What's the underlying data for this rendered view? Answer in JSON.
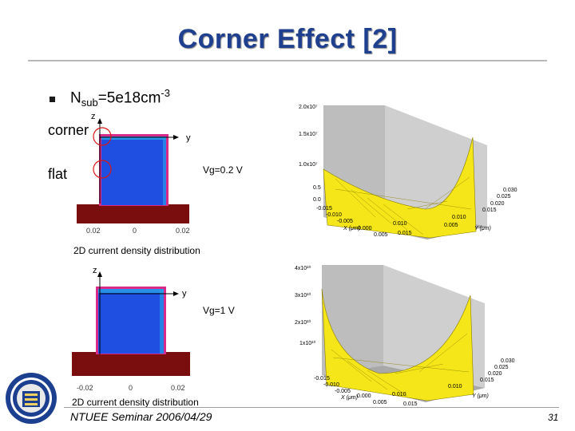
{
  "slide": {
    "title": "Corner Effect [2]",
    "bullet": {
      "main": "N",
      "sub": "sub",
      "eq": "=5e18cm",
      "sup": "-3"
    },
    "footer": "NTUEE Seminar 2006/04/29",
    "page_number": "31"
  },
  "sim1": {
    "z": "z",
    "y": "y",
    "corner": "corner",
    "flat": "flat",
    "vg": "Vg=0.2 V",
    "ticks": [
      "0.02",
      "0",
      "0.02"
    ],
    "caption": "2D current density distribution"
  },
  "sim2": {
    "z": "z",
    "y": "y",
    "vg": "Vg=1 V",
    "ticks": [
      "-0.02",
      "0",
      "0.02"
    ],
    "caption": "2D current density distribution"
  },
  "plot1": {
    "z_ticks": [
      "2.0x10⁷",
      "1.5x10⁷",
      "1.0x10⁷",
      "0.5",
      "0.0"
    ],
    "y_ticks": [
      "0.030",
      "0.025",
      "0.020",
      "0.015",
      "0.010",
      "0.005"
    ],
    "x_ticks": [
      "-0.015",
      "-0.010",
      "-0.005",
      "0.000",
      "0.005",
      "0.010",
      "0.015"
    ],
    "x_label": "X (μm)",
    "y_label": "Y (μm)"
  },
  "plot2": {
    "z_ticks": [
      "4x10¹⁰",
      "3x10¹⁰",
      "2x10¹⁰",
      "1x10¹⁰"
    ],
    "y_ticks": [
      "0.030",
      "0.025",
      "0.020",
      "0.015",
      "0.010"
    ],
    "x_ticks": [
      "-0.015",
      "-0.010",
      "-0.005",
      "0.000",
      "0.005",
      "0.010",
      "0.015"
    ],
    "x_label": "X (μm)",
    "y_label": "Y (μm)"
  },
  "colors": {
    "title": "#1f3f8f",
    "substrate": "#7a0d0d",
    "channel": "#1f4fe0",
    "channel_border": "#d82a8a",
    "surface": "#f5e61a",
    "wall": "#bdbdbd",
    "marker": "#d81818"
  }
}
